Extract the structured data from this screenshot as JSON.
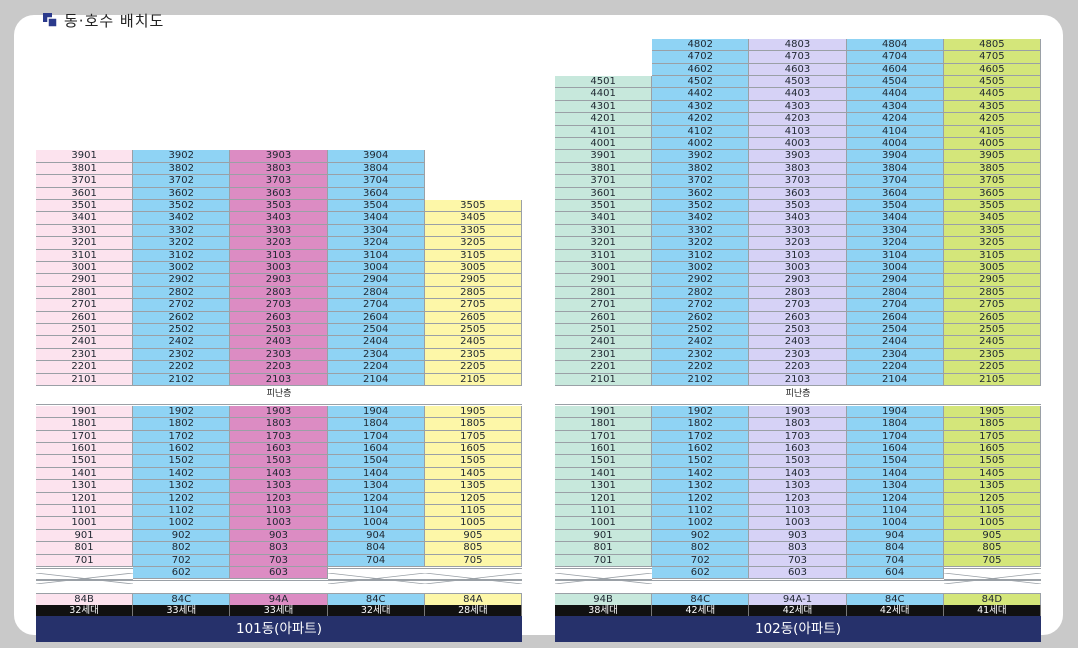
{
  "header": {
    "title": "동·호수 배치도"
  },
  "refuge_label": "피난층",
  "buildings": [
    {
      "name": "101동(아파트)",
      "columns": [
        {
          "line": "01",
          "color": "#fce3ee",
          "top_floor": 39,
          "low_floors": "7-19",
          "type": "84B",
          "units": "32세대"
        },
        {
          "line": "02",
          "color": "#8fd3f4",
          "top_floor": 39,
          "low_floors": "6-19",
          "type": "84C",
          "units": "33세대"
        },
        {
          "line": "03",
          "color": "#dc8cc3",
          "top_floor": 39,
          "low_floors": "6-19",
          "type": "94A",
          "units": "33세대"
        },
        {
          "line": "04",
          "color": "#8fd3f4",
          "top_floor": 39,
          "low_floors": "7-19",
          "type": "84C",
          "units": "32세대"
        },
        {
          "line": "05",
          "color": "#fdf7a8",
          "top_floor": 35,
          "low_floors": "7-19",
          "type": "84A",
          "units": "28세대"
        }
      ]
    },
    {
      "name": "102동(아파트)",
      "columns": [
        {
          "line": "01",
          "color": "#c7e8dc",
          "top_floor": 45,
          "low_floors": "7-19",
          "type": "94B",
          "units": "38세대"
        },
        {
          "line": "02",
          "color": "#8fd3f4",
          "top_floor": 48,
          "low_floors": "6-19",
          "type": "84C",
          "units": "42세대"
        },
        {
          "line": "03",
          "color": "#d6d2f6",
          "top_floor": 48,
          "low_floors": "6-19",
          "type": "94A-1",
          "units": "42세대"
        },
        {
          "line": "04",
          "color": "#8fd3f4",
          "top_floor": 48,
          "low_floors": "6-19",
          "type": "84C",
          "units": "42세대"
        },
        {
          "line": "05",
          "color": "#d4e67a",
          "top_floor": 48,
          "low_floors": "7-19",
          "type": "84D",
          "units": "41세대"
        }
      ]
    }
  ],
  "icons": {
    "title": "building-icon"
  }
}
